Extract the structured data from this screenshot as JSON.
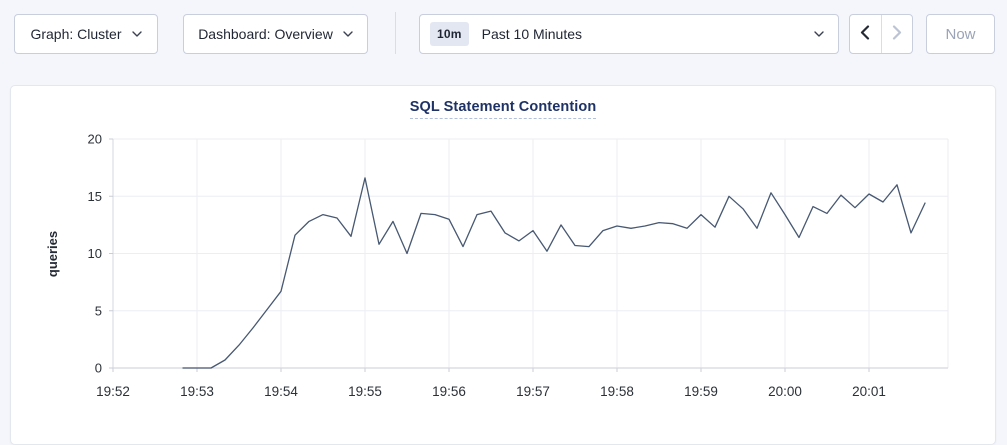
{
  "toolbar": {
    "graph_dropdown_label": "Graph: Cluster",
    "dashboard_dropdown_label": "Dashboard: Overview",
    "time_range_badge": "10m",
    "time_range_label": "Past 10 Minutes",
    "now_button_label": "Now"
  },
  "chart_data": {
    "type": "line",
    "title": "SQL Statement Contention",
    "ylabel": "queries",
    "ylim": [
      0,
      20
    ],
    "yticks": [
      0,
      5,
      10,
      15,
      20
    ],
    "xtick_labels": [
      "19:52",
      "19:53",
      "19:54",
      "19:55",
      "19:56",
      "19:57",
      "19:58",
      "19:59",
      "20:00",
      "20:01"
    ],
    "grid": true,
    "legend_position": "none",
    "line_color": "#475872",
    "series": [
      {
        "name": "queries",
        "x_seconds_after_19_52": [
          50,
          60,
          70,
          80,
          90,
          100,
          110,
          120,
          130,
          140,
          150,
          160,
          170,
          180,
          190,
          200,
          210,
          220,
          230,
          240,
          250,
          260,
          270,
          280,
          290,
          300,
          310,
          320,
          330,
          340,
          350,
          360,
          370,
          380,
          390,
          400,
          410,
          420,
          430,
          440,
          450,
          460,
          470,
          480,
          490,
          500,
          510,
          520,
          530,
          540,
          550,
          560,
          570,
          580
        ],
        "values": [
          0,
          0,
          0,
          0.7,
          2,
          3.5,
          5.1,
          6.7,
          11.6,
          12.8,
          13.4,
          13.1,
          11.5,
          16.6,
          10.8,
          12.8,
          10,
          13.5,
          13.4,
          13,
          10.6,
          13.4,
          13.7,
          11.8,
          11.1,
          12,
          10.2,
          12.5,
          10.7,
          10.6,
          12,
          12.4,
          12.2,
          12.4,
          12.7,
          12.6,
          12.2,
          13.4,
          12.3,
          15,
          13.9,
          12.2,
          15.3,
          13.4,
          11.4,
          14.1,
          13.5,
          15.1,
          14,
          15.2,
          14.5,
          16,
          11.8,
          14.4
        ]
      }
    ]
  }
}
